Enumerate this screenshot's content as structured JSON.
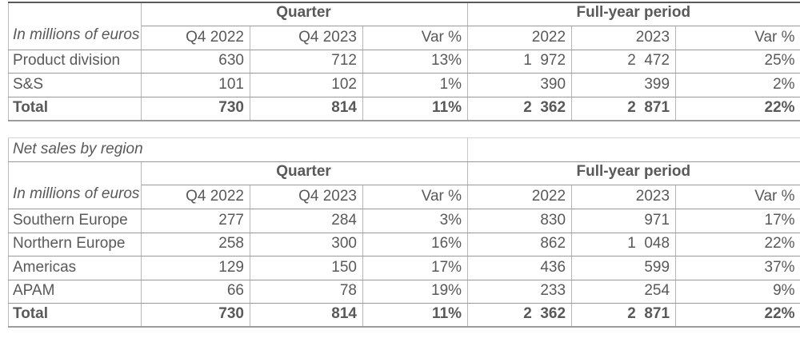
{
  "appearance": {
    "background": "#ffffff",
    "text_color": "#595959",
    "row_border_color": "#999999",
    "column_border_color": "#b7b7b7",
    "title_border_color": "#c9c9c9",
    "top_rule_color": "#5a5a5a"
  },
  "quarter_net_sales_table": {
    "corner_label": "In millions of euros",
    "quarter_header": "Quarter",
    "full_year_header": "Full-year period",
    "col_headers": [
      "Q4 2022",
      "Q4 2023",
      "Var %",
      "2022",
      "2023",
      "Var %"
    ],
    "rows": [
      {
        "label": "Product division",
        "values": [
          "630",
          "712",
          "13%",
          "1  972",
          "2  472",
          "25%"
        ],
        "bold": false
      },
      {
        "label": "S&S",
        "values": [
          "101",
          "102",
          "1%",
          "390",
          "399",
          "2%"
        ],
        "bold": false
      },
      {
        "label": "Total",
        "values": [
          "730",
          "814",
          "11%",
          "2  362",
          "2  871",
          "22%"
        ],
        "bold": true
      }
    ]
  },
  "region_net_sales_table": {
    "title": "Net sales by region",
    "corner_label": "In millions of euros",
    "quarter_header": "Quarter",
    "full_year_header": "Full-year period",
    "col_headers": [
      "Q4 2022",
      "Q4 2023",
      "Var %",
      "2022",
      "2023",
      "Var %"
    ],
    "rows": [
      {
        "label": "Southern Europe",
        "values": [
          "277",
          "284",
          "3%",
          "830",
          "971",
          "17%"
        ],
        "bold": false
      },
      {
        "label": "Northern Europe",
        "values": [
          "258",
          "300",
          "16%",
          "862",
          "1  048",
          "22%"
        ],
        "bold": false
      },
      {
        "label": "Americas",
        "values": [
          "129",
          "150",
          "17%",
          "436",
          "599",
          "37%"
        ],
        "bold": false
      },
      {
        "label": "APAM",
        "values": [
          "66",
          "78",
          "19%",
          "233",
          "254",
          "9%"
        ],
        "bold": false
      },
      {
        "label": "Total",
        "values": [
          "730",
          "814",
          "11%",
          "2  362",
          "2  871",
          "22%"
        ],
        "bold": true
      }
    ]
  }
}
